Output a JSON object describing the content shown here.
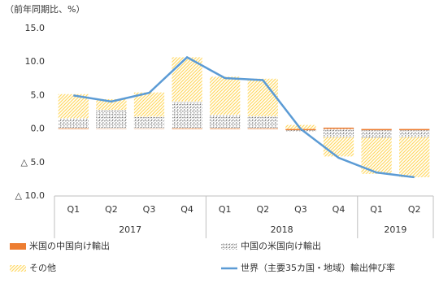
{
  "chart_data": {
    "type": "stacked-bar-line",
    "ylabel": "（前年同期比、%）",
    "categories": [
      "Q1",
      "Q2",
      "Q3",
      "Q4",
      "Q1",
      "Q2",
      "Q3",
      "Q4",
      "Q1",
      "Q2"
    ],
    "groups": [
      {
        "name": "2017",
        "size": 4
      },
      {
        "name": "2018",
        "size": 4
      },
      {
        "name": "2019",
        "size": 2
      }
    ],
    "series": [
      {
        "name": "米国の中国向け輸出",
        "kind": "bar",
        "fill": "solid",
        "color": "#ed7d31",
        "values": [
          0.1,
          0.05,
          0.05,
          0.1,
          0.1,
          0.1,
          -0.2,
          0.2,
          -0.2,
          -0.2
        ]
      },
      {
        "name": "中国の米国向け輸出",
        "kind": "bar",
        "fill": "dots",
        "color": "#a5a5a5",
        "values": [
          1.5,
          2.8,
          1.8,
          4.0,
          2.0,
          1.8,
          -0.2,
          -1.2,
          -1.1,
          -1.0
        ]
      },
      {
        "name": "その他",
        "kind": "bar",
        "fill": "hatch",
        "color": "#ffd966",
        "values": [
          3.6,
          1.6,
          3.6,
          6.6,
          5.7,
          5.6,
          0.6,
          -2.9,
          -5.4,
          -6.0
        ]
      },
      {
        "name": "世界（主要35カ国・地域）輸出伸び率",
        "kind": "line",
        "color": "#5b9bd5",
        "values": [
          5.0,
          4.1,
          5.4,
          10.7,
          7.6,
          7.3,
          0.0,
          -4.3,
          -6.5,
          -7.2
        ]
      }
    ],
    "ylim": [
      -10,
      15
    ],
    "yticks": [
      {
        "value": -10,
        "label": "△ 10.0"
      },
      {
        "value": -5,
        "label": "△ 5.0"
      },
      {
        "value": 0,
        "label": "0.0"
      },
      {
        "value": 5,
        "label": "5.0"
      },
      {
        "value": 10,
        "label": "10.0"
      },
      {
        "value": 15,
        "label": "15.0"
      }
    ]
  }
}
